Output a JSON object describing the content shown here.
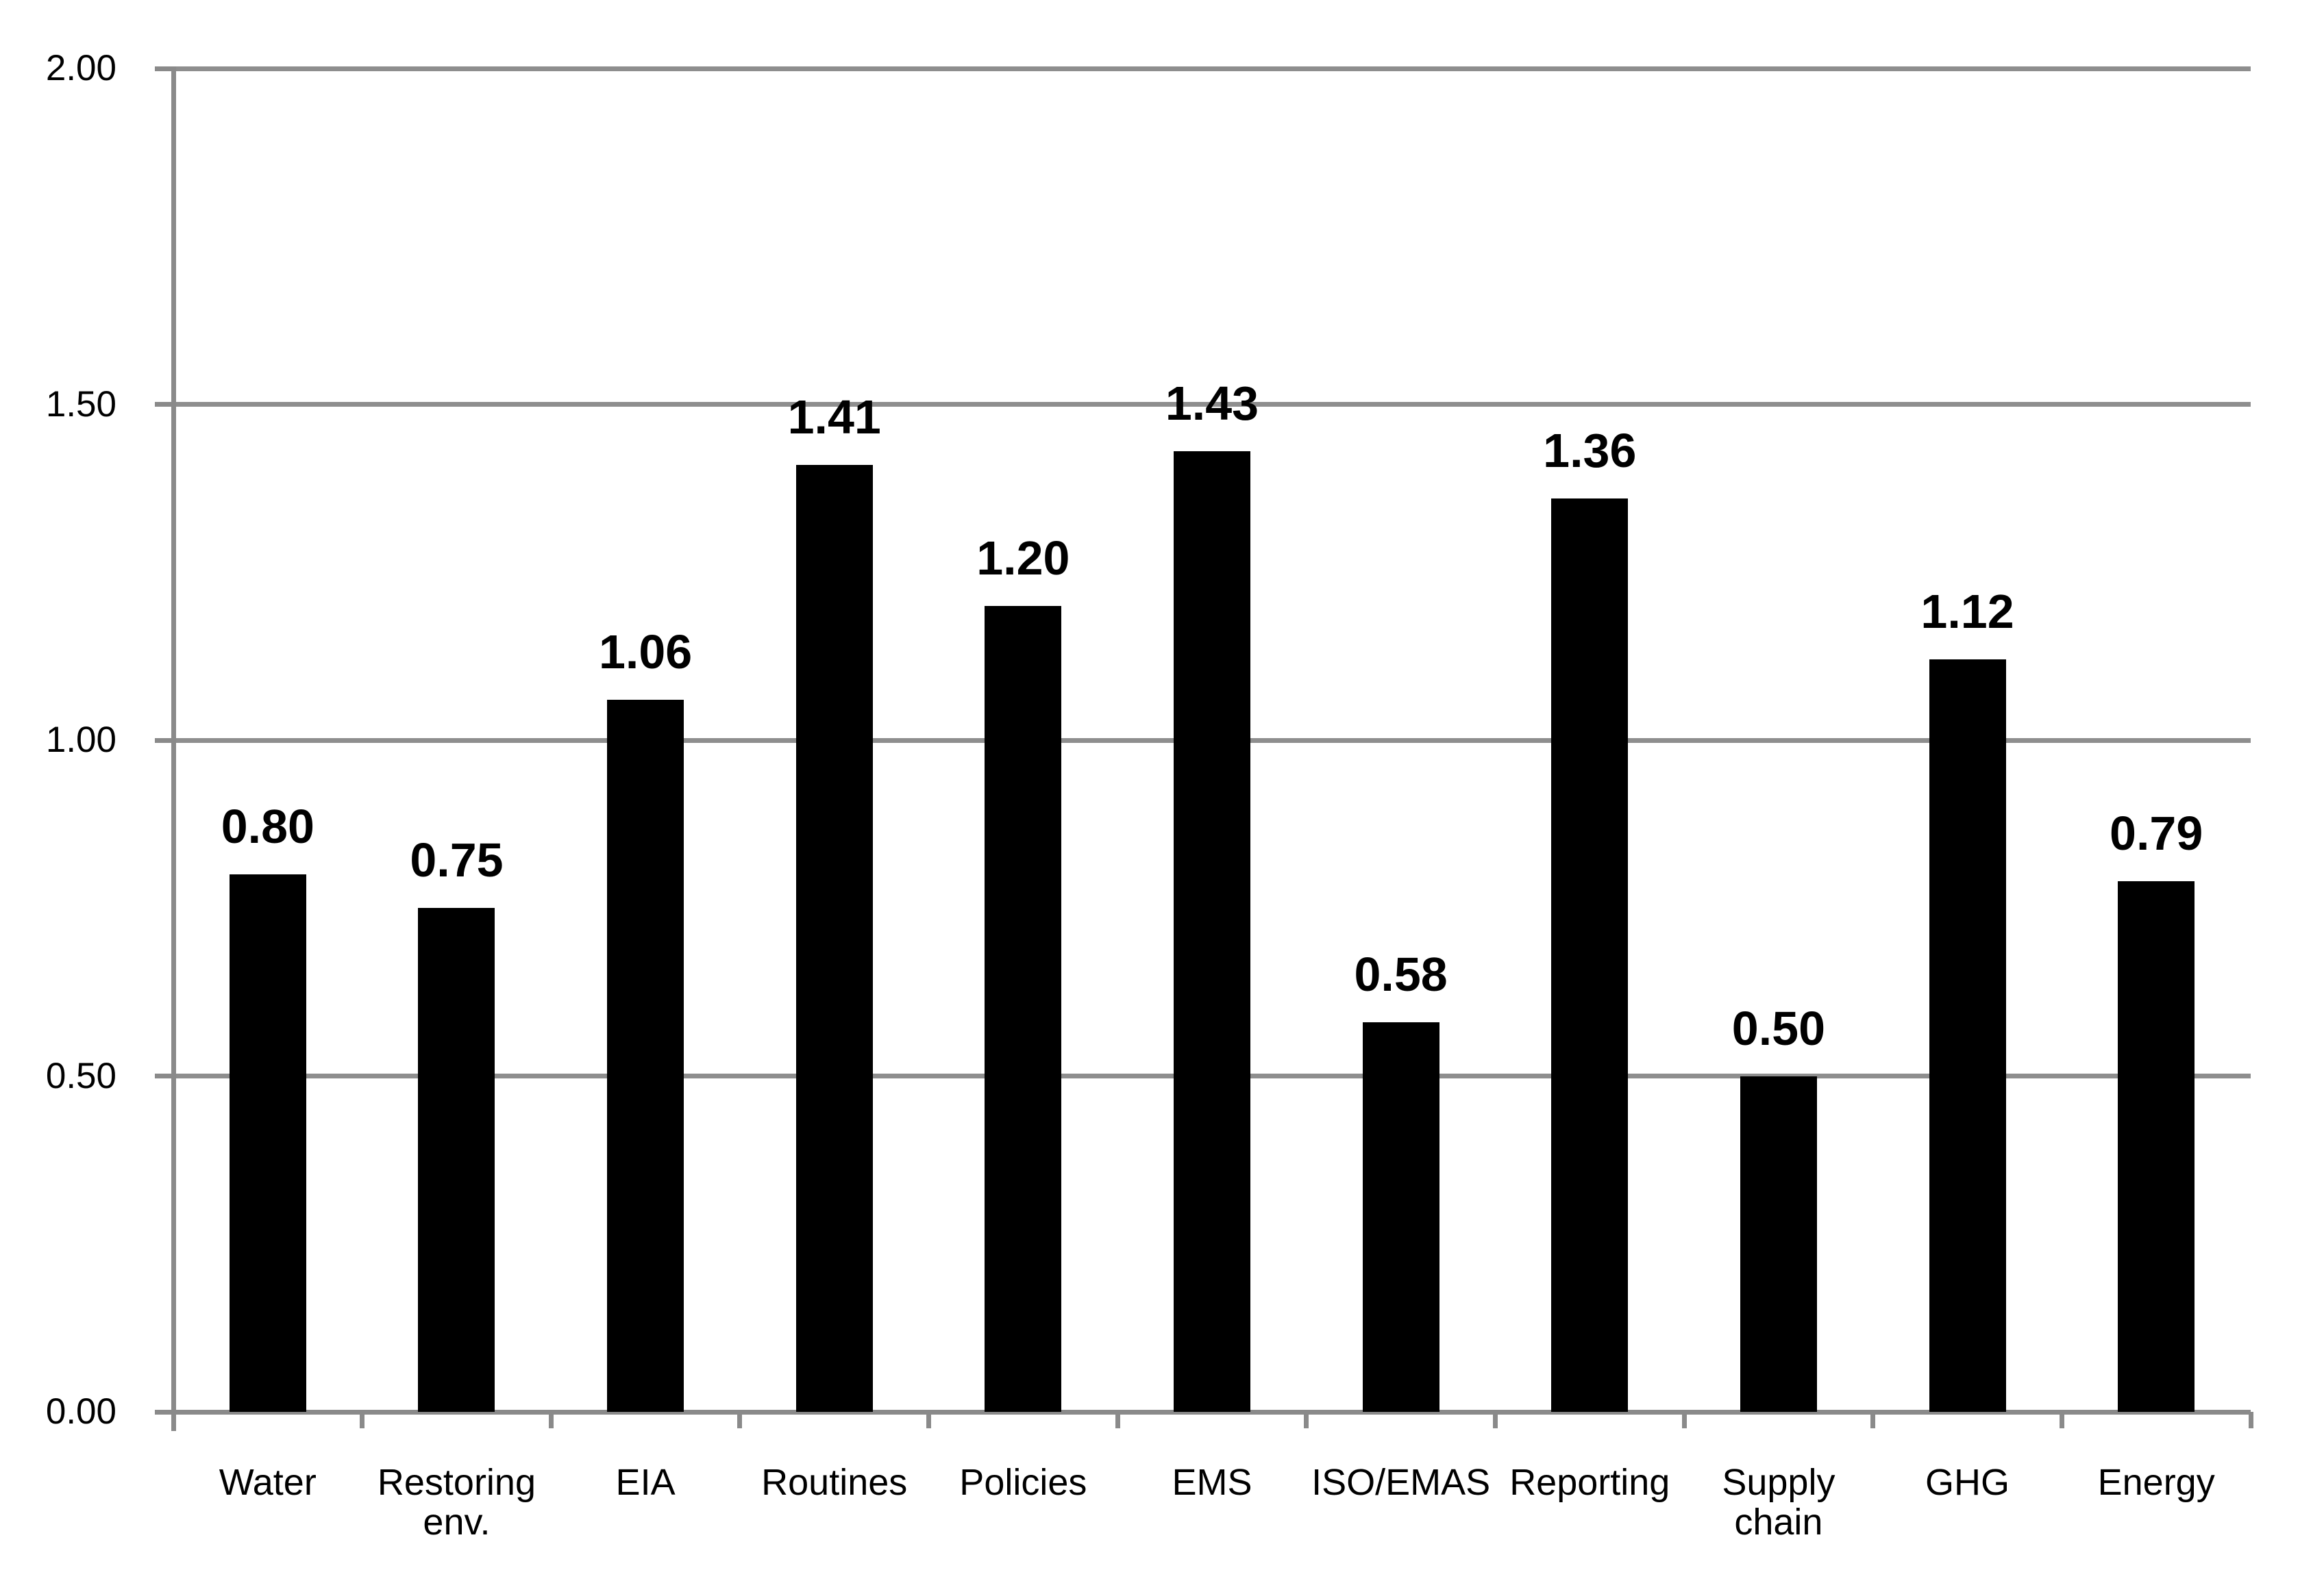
{
  "chart_data": {
    "type": "bar",
    "title": "",
    "xlabel": "",
    "ylabel": "",
    "categories": [
      "Water",
      "Restoring env.",
      "EIA",
      "Routines",
      "Policies",
      "EMS",
      "ISO/EMAS",
      "Reporting",
      "Supply chain",
      "GHG",
      "Energy"
    ],
    "values": [
      0.8,
      0.75,
      1.06,
      1.41,
      1.2,
      1.43,
      0.58,
      1.36,
      0.5,
      1.12,
      0.79
    ],
    "value_labels": [
      "0.80",
      "0.75",
      "1.06",
      "1.41",
      "1.20",
      "1.43",
      "0.58",
      "1.36",
      "0.50",
      "1.12",
      "0.79"
    ],
    "y_ticks": [
      {
        "value": 0.0,
        "label": "0.00"
      },
      {
        "value": 0.5,
        "label": "0.50"
      },
      {
        "value": 1.0,
        "label": "1.00"
      },
      {
        "value": 1.5,
        "label": "1.50"
      },
      {
        "value": 2.0,
        "label": "2.00"
      }
    ],
    "ylim": [
      0,
      2
    ],
    "grid": true,
    "legend": false,
    "bar_color": "#000000",
    "axis_color": "#8a8a8a",
    "gridline_color": "#8e8e8e",
    "text_color": "#000000",
    "background_color": "#ffffff"
  }
}
